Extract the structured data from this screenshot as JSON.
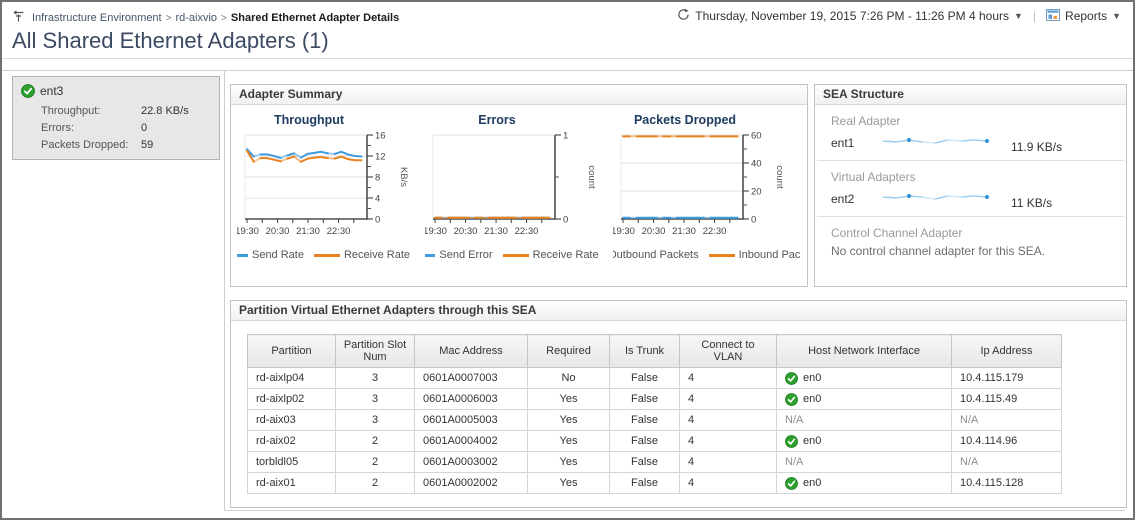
{
  "header": {
    "breadcrumb": [
      "Infrastructure Environment",
      "rd-aixvio",
      "Shared Ethernet Adapter Details"
    ],
    "time_range": "Thursday, November 19, 2015 7:26 PM - 11:26 PM 4 hours",
    "reports_label": "Reports",
    "title": "All Shared Ethernet Adapters (1)"
  },
  "adapter_list": {
    "selected": {
      "name": "ent3",
      "status": "normal",
      "metrics": [
        {
          "label": "Throughput:",
          "value": "22.8 KB/s"
        },
        {
          "label": "Errors:",
          "value": "0"
        },
        {
          "label": "Packets Dropped:",
          "value": "59"
        }
      ]
    }
  },
  "panels": {
    "adapter_summary_title": "Adapter Summary",
    "sea_structure_title": "SEA Structure",
    "partition_table_title": "Partition Virtual Ethernet Adapters through this SEA"
  },
  "chart_data": [
    {
      "type": "line",
      "title": "Throughput",
      "ylabel": "KB/s",
      "ylim": [
        0,
        16
      ],
      "yticks": [
        0,
        4,
        8,
        12,
        16
      ],
      "xticks": [
        "19:30",
        "20:30",
        "21:30",
        "22:30"
      ],
      "grid": true,
      "legend_position": "bottom",
      "series": [
        {
          "name": "Send Rate",
          "color": "#3d9be0",
          "values": [
            13.3,
            11.9,
            12.3,
            12.3,
            12.0,
            11.6,
            12.1,
            12.5,
            11.7,
            12.4,
            12.6,
            12.8,
            12.5,
            12.4,
            12.8,
            12.3,
            12.0,
            11.9
          ]
        },
        {
          "name": "Receive Rate",
          "color": "#e8821e",
          "values": [
            13.0,
            10.9,
            11.6,
            11.6,
            11.3,
            11.0,
            11.5,
            11.9,
            10.9,
            11.5,
            11.7,
            11.8,
            11.6,
            11.5,
            11.9,
            11.4,
            11.2,
            11.2
          ]
        }
      ]
    },
    {
      "type": "line",
      "title": "Errors",
      "ylabel": "count",
      "ylim": [
        0,
        1
      ],
      "yticks": [
        0,
        1
      ],
      "xticks": [
        "19:30",
        "20:30",
        "21:30",
        "22:30"
      ],
      "grid": false,
      "legend_position": "bottom",
      "series": [
        {
          "name": "Send Error",
          "color": "#3d9be0",
          "values": [
            0,
            0,
            0,
            0,
            0,
            0,
            0,
            0,
            0,
            0,
            0,
            0,
            0,
            0,
            0,
            0,
            0,
            0
          ]
        },
        {
          "name": "Receive Rate",
          "color": "#e8821e",
          "values": [
            0,
            0,
            0,
            0,
            0,
            0,
            0,
            0,
            0,
            0,
            0,
            0,
            0,
            0,
            0,
            0,
            0,
            0
          ]
        }
      ]
    },
    {
      "type": "line",
      "title": "Packets Dropped",
      "ylabel": "count",
      "ylim": [
        0,
        60
      ],
      "yticks": [
        0,
        20,
        40,
        60
      ],
      "xticks": [
        "19:30",
        "20:30",
        "21:30",
        "22:30"
      ],
      "grid": true,
      "legend_position": "bottom",
      "series": [
        {
          "name": "Outbound Packets",
          "color": "#3d9be0",
          "values": [
            0,
            0,
            0,
            0,
            0,
            0,
            0,
            0,
            0,
            0,
            0,
            0,
            0,
            0,
            0,
            0,
            0,
            0
          ]
        },
        {
          "name": "Inbound Pack",
          "color": "#e8821e",
          "values": [
            59,
            59,
            59,
            59,
            59,
            59,
            59,
            59,
            59,
            59,
            59,
            59,
            59,
            59,
            59,
            59,
            59,
            59
          ]
        }
      ]
    }
  ],
  "sea_structure": {
    "sections": [
      {
        "label": "Real Adapter",
        "adapter": "ent1",
        "value": "11.9 KB/s",
        "spark": [
          11.9,
          11.8,
          12.0,
          11.8,
          11.7,
          12.0,
          11.9,
          12.0,
          11.9
        ]
      },
      {
        "label": "Virtual Adapters",
        "adapter": "ent2",
        "value": "11 KB/s",
        "spark": [
          11.0,
          10.9,
          11.1,
          11.0,
          10.8,
          11.1,
          11.0,
          11.1,
          11.0
        ]
      },
      {
        "label": "Control Channel Adapter",
        "message": "No control channel adapter for this SEA."
      }
    ]
  },
  "partition_table": {
    "columns": [
      "Partition",
      "Partition Slot Num",
      "Mac Address",
      "Required",
      "Is Trunk",
      "Connect to VLAN",
      "Host Network Interface",
      "Ip Address"
    ],
    "rows": [
      {
        "partition": "rd-aixlp04",
        "slot": "3",
        "mac": "0601A0007003",
        "required": "No",
        "is_trunk": "False",
        "vlan": "4",
        "host_interface": "en0",
        "host_status": "normal",
        "ip": "10.4.115.179"
      },
      {
        "partition": "rd-aixlp02",
        "slot": "3",
        "mac": "0601A0006003",
        "required": "Yes",
        "is_trunk": "False",
        "vlan": "4",
        "host_interface": "en0",
        "host_status": "normal",
        "ip": "10.4.115.49"
      },
      {
        "partition": "rd-aix03",
        "slot": "3",
        "mac": "0601A0005003",
        "required": "Yes",
        "is_trunk": "False",
        "vlan": "4",
        "host_interface": "N/A",
        "host_status": null,
        "ip": "N/A"
      },
      {
        "partition": "rd-aix02",
        "slot": "2",
        "mac": "0601A0004002",
        "required": "Yes",
        "is_trunk": "False",
        "vlan": "4",
        "host_interface": "en0",
        "host_status": "normal",
        "ip": "10.4.114.96"
      },
      {
        "partition": "torbldl05",
        "slot": "2",
        "mac": "0601A0003002",
        "required": "Yes",
        "is_trunk": "False",
        "vlan": "4",
        "host_interface": "N/A",
        "host_status": null,
        "ip": "N/A"
      },
      {
        "partition": "rd-aix01",
        "slot": "2",
        "mac": "0601A0002002",
        "required": "Yes",
        "is_trunk": "False",
        "vlan": "4",
        "host_interface": "en0",
        "host_status": "normal",
        "ip": "10.4.115.128"
      }
    ]
  },
  "colors": {
    "send_series": "#3d9be0",
    "receive_series": "#e8821e",
    "status_ok": "#2ca02c",
    "spark_line": "#9fd0ef",
    "spark_dot": "#2f93d8"
  }
}
